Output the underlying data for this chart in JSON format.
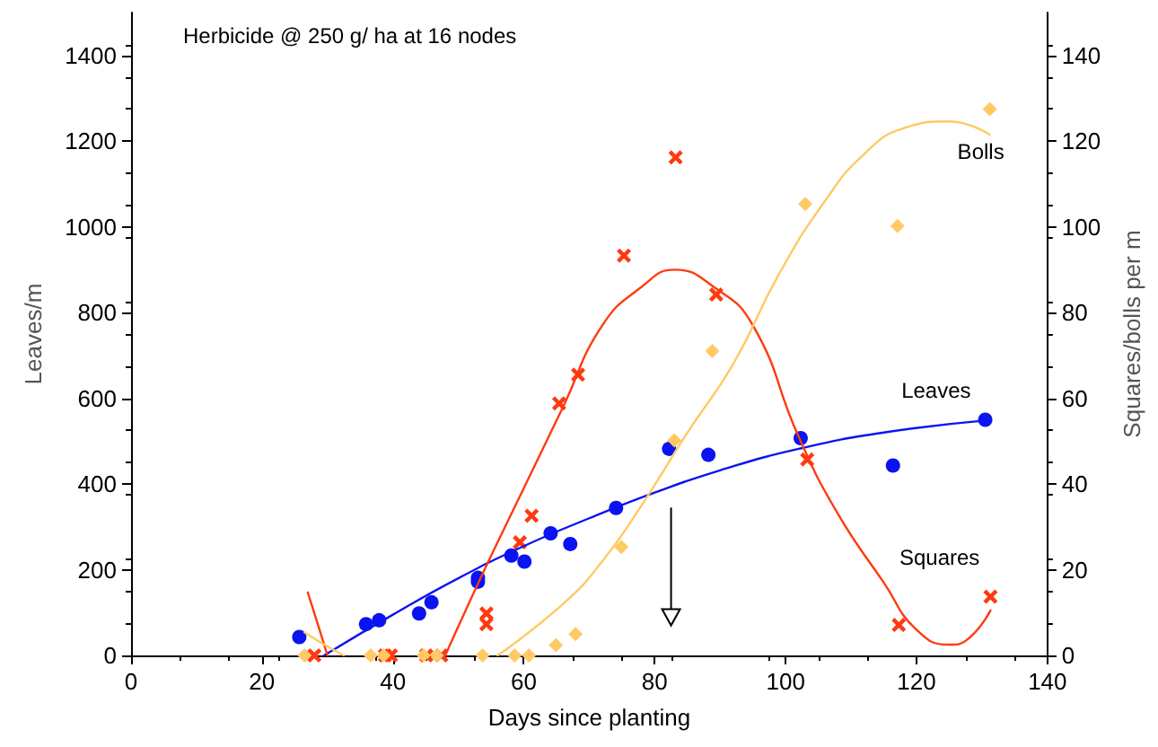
{
  "chart_data": {
    "type": "scatter",
    "title": "Herbicide @ 250 g/ ha at 16 nodes",
    "xlabel": "Days since planting",
    "ylabel": "Leaves/m",
    "y2label": "Squares/bolls per m",
    "xlim": [
      0,
      140
    ],
    "xticks": [
      0,
      20,
      40,
      60,
      80,
      100,
      120,
      140
    ],
    "ylim": [
      0,
      1500
    ],
    "yticks": [
      0,
      200,
      400,
      600,
      800,
      1000,
      1200,
      1400
    ],
    "y2lim": [
      0,
      150
    ],
    "y2ticks": [
      0,
      20,
      40,
      60,
      80,
      100,
      120,
      140
    ],
    "grid": false,
    "legend": false,
    "series": [
      {
        "name": "Leaves",
        "marker": "circle",
        "color": "#0a14f0",
        "x": [
          25.7,
          35.9,
          37.9,
          44.0,
          45.9,
          53,
          53,
          58.1,
          60.1,
          64.1,
          67.1,
          74.1,
          82.2,
          88.2,
          102.3,
          116.4,
          130.5
        ],
        "values": [
          43,
          73,
          82,
          98,
          124,
          181,
          172,
          233,
          219,
          285,
          260,
          344,
          482,
          468,
          507,
          443,
          550
        ]
      },
      {
        "name": "Squares",
        "marker": "cross",
        "axis": "y2",
        "color": "#ff3a10",
        "x": [
          28,
          38.8,
          39.7,
          45.1,
          47.4,
          54.3,
          54.3,
          59.4,
          61.2,
          65.4,
          68.3,
          75.3,
          83.2,
          89.4,
          103.3,
          117.3,
          131.3
        ],
        "values": [
          0,
          0,
          0,
          0,
          0,
          9.8,
          7.3,
          26.4,
          32.6,
          58.8,
          65.5,
          93.3,
          116.2,
          84.2,
          45.7,
          7.1,
          13.7
        ]
      },
      {
        "name": "Bolls",
        "marker": "diamond",
        "axis": "y2",
        "color": "#ffc966",
        "x": [
          26.5,
          36.6,
          38.6,
          44.7,
          46.7,
          53.7,
          58.6,
          60.8,
          64.9,
          67.9,
          74.9,
          83.0,
          88.8,
          103.0,
          117.1,
          131.2
        ],
        "values": [
          0,
          0,
          0,
          0,
          0,
          0,
          0,
          0,
          2.4,
          5.0,
          25.3,
          50.2,
          71.0,
          105.3,
          100.2,
          127.5
        ]
      },
      {
        "type": "line",
        "marker": "none",
        "line_style": "solid",
        "color": "#0a14f0",
        "x": [
          29.5,
          40,
          50,
          60,
          70,
          80,
          90,
          102,
          115,
          130.5
        ],
        "values": [
          0,
          95,
          180,
          255,
          320,
          380,
          432,
          482,
          520,
          548
        ]
      },
      {
        "type": "line",
        "marker": "none",
        "line_style": "solid",
        "axis": "y2",
        "color": "#ff3a10",
        "x": [
          27,
          29,
          30,
          40,
          48,
          54,
          60,
          66,
          72,
          78,
          83,
          89,
          95,
          102,
          108,
          115,
          120,
          125,
          128,
          131.3
        ],
        "values": [
          14.7,
          5,
          0,
          null,
          0,
          20,
          39,
          58,
          77,
          86,
          90,
          86,
          77,
          51,
          33,
          17,
          6,
          2.5,
          4,
          10.5
        ]
      },
      {
        "type": "line",
        "marker": "none",
        "line_style": "solid",
        "axis": "y2",
        "color": "#ffc966",
        "x": [
          26.5,
          29,
          32.5,
          45,
          56,
          66,
          72,
          78,
          85,
          92,
          99,
          106,
          112,
          118,
          125,
          131.2
        ],
        "values": [
          5.4,
          3,
          0,
          null,
          0,
          12,
          22,
          35,
          52,
          68,
          89,
          106,
          117,
          123,
          124.6,
          121.5
        ]
      }
    ]
  }
}
